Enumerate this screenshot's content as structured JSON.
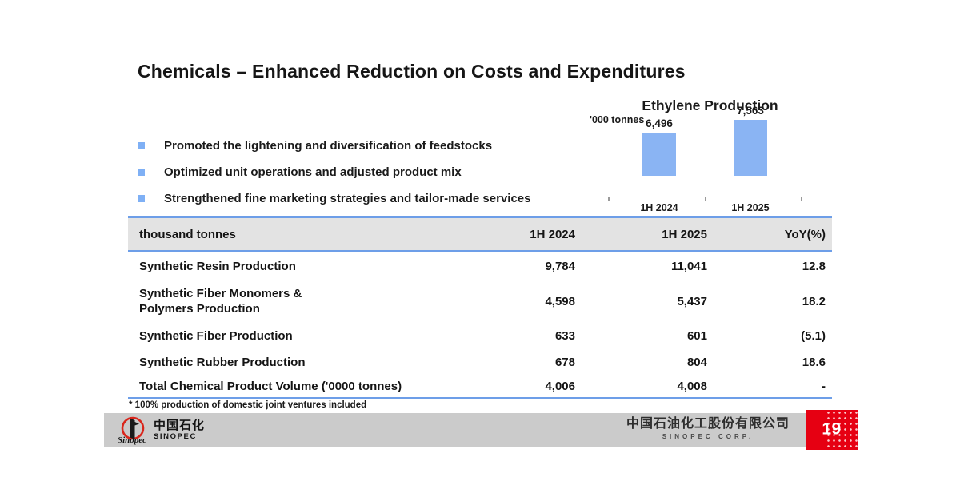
{
  "slide": {
    "title": "Chemicals – Enhanced Reduction on Costs and Expenditures",
    "bullets": [
      "Promoted the lightening and diversification of feedstocks",
      "Optimized unit operations and adjusted product mix",
      "Strengthened fine marketing strategies and tailor-made services"
    ],
    "table": {
      "columns": [
        "thousand tonnes",
        "1H 2024",
        "1H 2025",
        "YoY(%)"
      ],
      "rows": [
        {
          "label": "Synthetic Resin Production",
          "values": [
            "9,784",
            "11,041",
            "12.8"
          ]
        },
        {
          "label": "Synthetic Fiber Monomers &\nPolymers Production",
          "values": [
            "4,598",
            "5,437",
            "18.2"
          ]
        },
        {
          "label": "Synthetic Fiber Production",
          "values": [
            "633",
            "601",
            "(5.1)"
          ]
        },
        {
          "label": "Synthetic Rubber Production",
          "values": [
            "678",
            "804",
            "18.6"
          ]
        },
        {
          "label": "Total Chemical Product Volume ('0000 tonnes)",
          "values": [
            "4,006",
            "4,008",
            "-"
          ]
        }
      ]
    },
    "footnote": "* 100% production of domestic joint ventures included",
    "footer": {
      "logo_cn": "中国石化",
      "logo_en": "SINOPEC",
      "logo_script": "Sinopec",
      "company_cn": "中国石油化工股份有限公司",
      "company_en": "SINOPEC CORP.",
      "page_number": "19"
    },
    "colors": {
      "accent_blue": "#7fb0f5",
      "table_border_blue": "#6d9ee8",
      "header_gray": "#e3e3e3",
      "footer_gray": "#cbcbcb",
      "sinopec_red": "#e60012"
    }
  },
  "chart_data": {
    "type": "bar",
    "title": "Ethylene Production",
    "unit_label": "'000 tonnes",
    "categories": [
      "1H 2024",
      "1H 2025"
    ],
    "values": [
      6496,
      7563
    ],
    "value_labels": [
      "6,496",
      "7,563"
    ],
    "bar_color": "#8ab4f3",
    "ylabel": "'000 tonnes",
    "grid": false,
    "legend": false,
    "data_labels_position": "above-bars"
  }
}
